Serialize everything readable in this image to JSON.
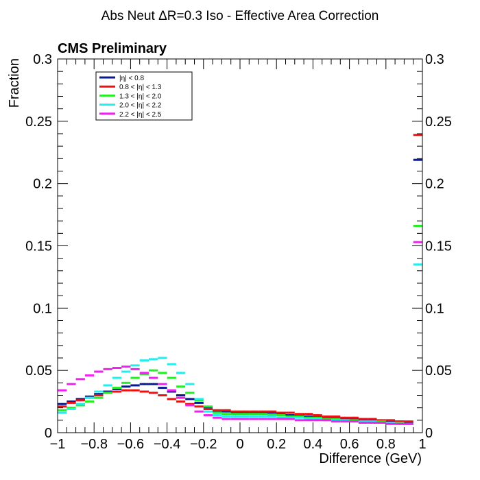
{
  "chart_data": {
    "type": "line",
    "title": "Abs Neut ΔR=0.3 Iso - Effective Area Correction",
    "label": "CMS Preliminary",
    "xlabel": "Difference (GeV)",
    "ylabel": "Fraction",
    "xlim": [
      -1,
      1
    ],
    "ylim": [
      0,
      0.3
    ],
    "xticks": [
      "−1",
      "−0.8",
      "−0.6",
      "−0.4",
      "−0.2",
      "0",
      "0.2",
      "0.4",
      "0.6",
      "0.8",
      "1"
    ],
    "yticks": [
      "0",
      "0.05",
      "0.1",
      "0.15",
      "0.2",
      "0.25",
      "0.3"
    ],
    "legend_position": "top-left",
    "bin_width": 0.05,
    "bin_centers": [
      -0.975,
      -0.925,
      -0.875,
      -0.825,
      -0.775,
      -0.725,
      -0.675,
      -0.625,
      -0.575,
      -0.525,
      -0.475,
      -0.425,
      -0.375,
      -0.325,
      -0.275,
      -0.225,
      -0.175,
      -0.125,
      -0.075,
      -0.025,
      0.025,
      0.075,
      0.125,
      0.175,
      0.225,
      0.275,
      0.325,
      0.375,
      0.425,
      0.475,
      0.525,
      0.575,
      0.625,
      0.675,
      0.725,
      0.775,
      0.825,
      0.875,
      0.925,
      0.975
    ],
    "series": [
      {
        "name": "|η| < 0.8",
        "color": "#0a1a8c",
        "values": [
          0.023,
          0.025,
          0.027,
          0.029,
          0.031,
          0.033,
          0.035,
          0.037,
          0.038,
          0.039,
          0.039,
          0.036,
          0.033,
          0.03,
          0.027,
          0.024,
          0.02,
          0.017,
          0.017,
          0.016,
          0.016,
          0.016,
          0.016,
          0.016,
          0.015,
          0.014,
          0.014,
          0.013,
          0.013,
          0.012,
          0.012,
          0.011,
          0.011,
          0.01,
          0.01,
          0.009,
          0.009,
          0.009,
          0.008,
          0.219
        ]
      },
      {
        "name": "0.8 < |η| < 1.3",
        "color": "#ee1111",
        "values": [
          0.021,
          0.024,
          0.026,
          0.028,
          0.03,
          0.032,
          0.033,
          0.034,
          0.034,
          0.033,
          0.032,
          0.03,
          0.027,
          0.025,
          0.023,
          0.021,
          0.019,
          0.018,
          0.018,
          0.017,
          0.017,
          0.017,
          0.017,
          0.017,
          0.016,
          0.016,
          0.015,
          0.015,
          0.014,
          0.013,
          0.013,
          0.012,
          0.012,
          0.011,
          0.011,
          0.01,
          0.01,
          0.009,
          0.009,
          0.239
        ]
      },
      {
        "name": "1.3 < |η| < 2.0",
        "color": "#22ee22",
        "values": [
          0.018,
          0.02,
          0.022,
          0.025,
          0.028,
          0.032,
          0.036,
          0.04,
          0.044,
          0.047,
          0.05,
          0.048,
          0.044,
          0.037,
          0.032,
          0.026,
          0.021,
          0.016,
          0.015,
          0.015,
          0.015,
          0.015,
          0.015,
          0.014,
          0.014,
          0.013,
          0.013,
          0.012,
          0.012,
          0.011,
          0.011,
          0.01,
          0.01,
          0.009,
          0.009,
          0.009,
          0.008,
          0.008,
          0.007,
          0.166
        ]
      },
      {
        "name": "2.0 < |η| < 2.2",
        "color": "#22eeee",
        "values": [
          0.016,
          0.019,
          0.023,
          0.028,
          0.033,
          0.038,
          0.044,
          0.049,
          0.054,
          0.058,
          0.059,
          0.06,
          0.055,
          0.048,
          0.039,
          0.027,
          0.017,
          0.014,
          0.013,
          0.013,
          0.013,
          0.013,
          0.013,
          0.013,
          0.012,
          0.012,
          0.012,
          0.011,
          0.011,
          0.01,
          0.01,
          0.01,
          0.009,
          0.009,
          0.009,
          0.008,
          0.008,
          0.007,
          0.007,
          0.135
        ]
      },
      {
        "name": "2.2 < |η| < 2.5",
        "color": "#ee22ee",
        "values": [
          0.034,
          0.039,
          0.043,
          0.046,
          0.049,
          0.051,
          0.052,
          0.053,
          0.051,
          0.048,
          0.044,
          0.039,
          0.034,
          0.028,
          0.022,
          0.017,
          0.014,
          0.012,
          0.011,
          0.011,
          0.011,
          0.011,
          0.011,
          0.011,
          0.011,
          0.011,
          0.01,
          0.01,
          0.01,
          0.01,
          0.009,
          0.009,
          0.009,
          0.008,
          0.008,
          0.008,
          0.007,
          0.007,
          0.007,
          0.153
        ]
      }
    ]
  }
}
